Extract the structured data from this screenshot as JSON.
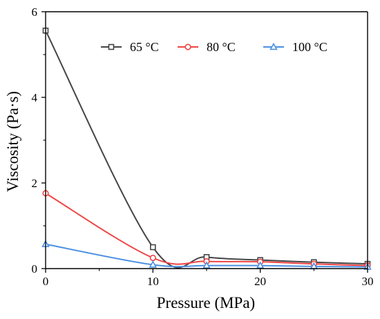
{
  "chart_data": {
    "type": "line",
    "xlabel": "Pressure (MPa)",
    "ylabel": "Viscosity (Pa·s)",
    "xlim": [
      0,
      30
    ],
    "ylim": [
      0,
      6
    ],
    "x_ticks": [
      0,
      10,
      20,
      30
    ],
    "y_ticks": [
      0,
      2,
      4,
      6
    ],
    "grid": false,
    "legend_position": "top-right",
    "x": [
      0,
      10,
      15,
      20,
      25,
      30
    ],
    "series": [
      {
        "name": "65 °C",
        "color": "#444444",
        "marker": "square",
        "values": [
          5.56,
          0.5,
          0.27,
          0.2,
          0.15,
          0.11
        ]
      },
      {
        "name": "80 °C",
        "color": "#ef4444",
        "marker": "circle",
        "values": [
          1.76,
          0.25,
          0.17,
          0.16,
          0.11,
          0.07
        ]
      },
      {
        "name": "100 °C",
        "color": "#4a90e2",
        "marker": "triangle",
        "values": [
          0.57,
          0.09,
          0.07,
          0.07,
          0.05,
          0.04
        ]
      }
    ]
  }
}
